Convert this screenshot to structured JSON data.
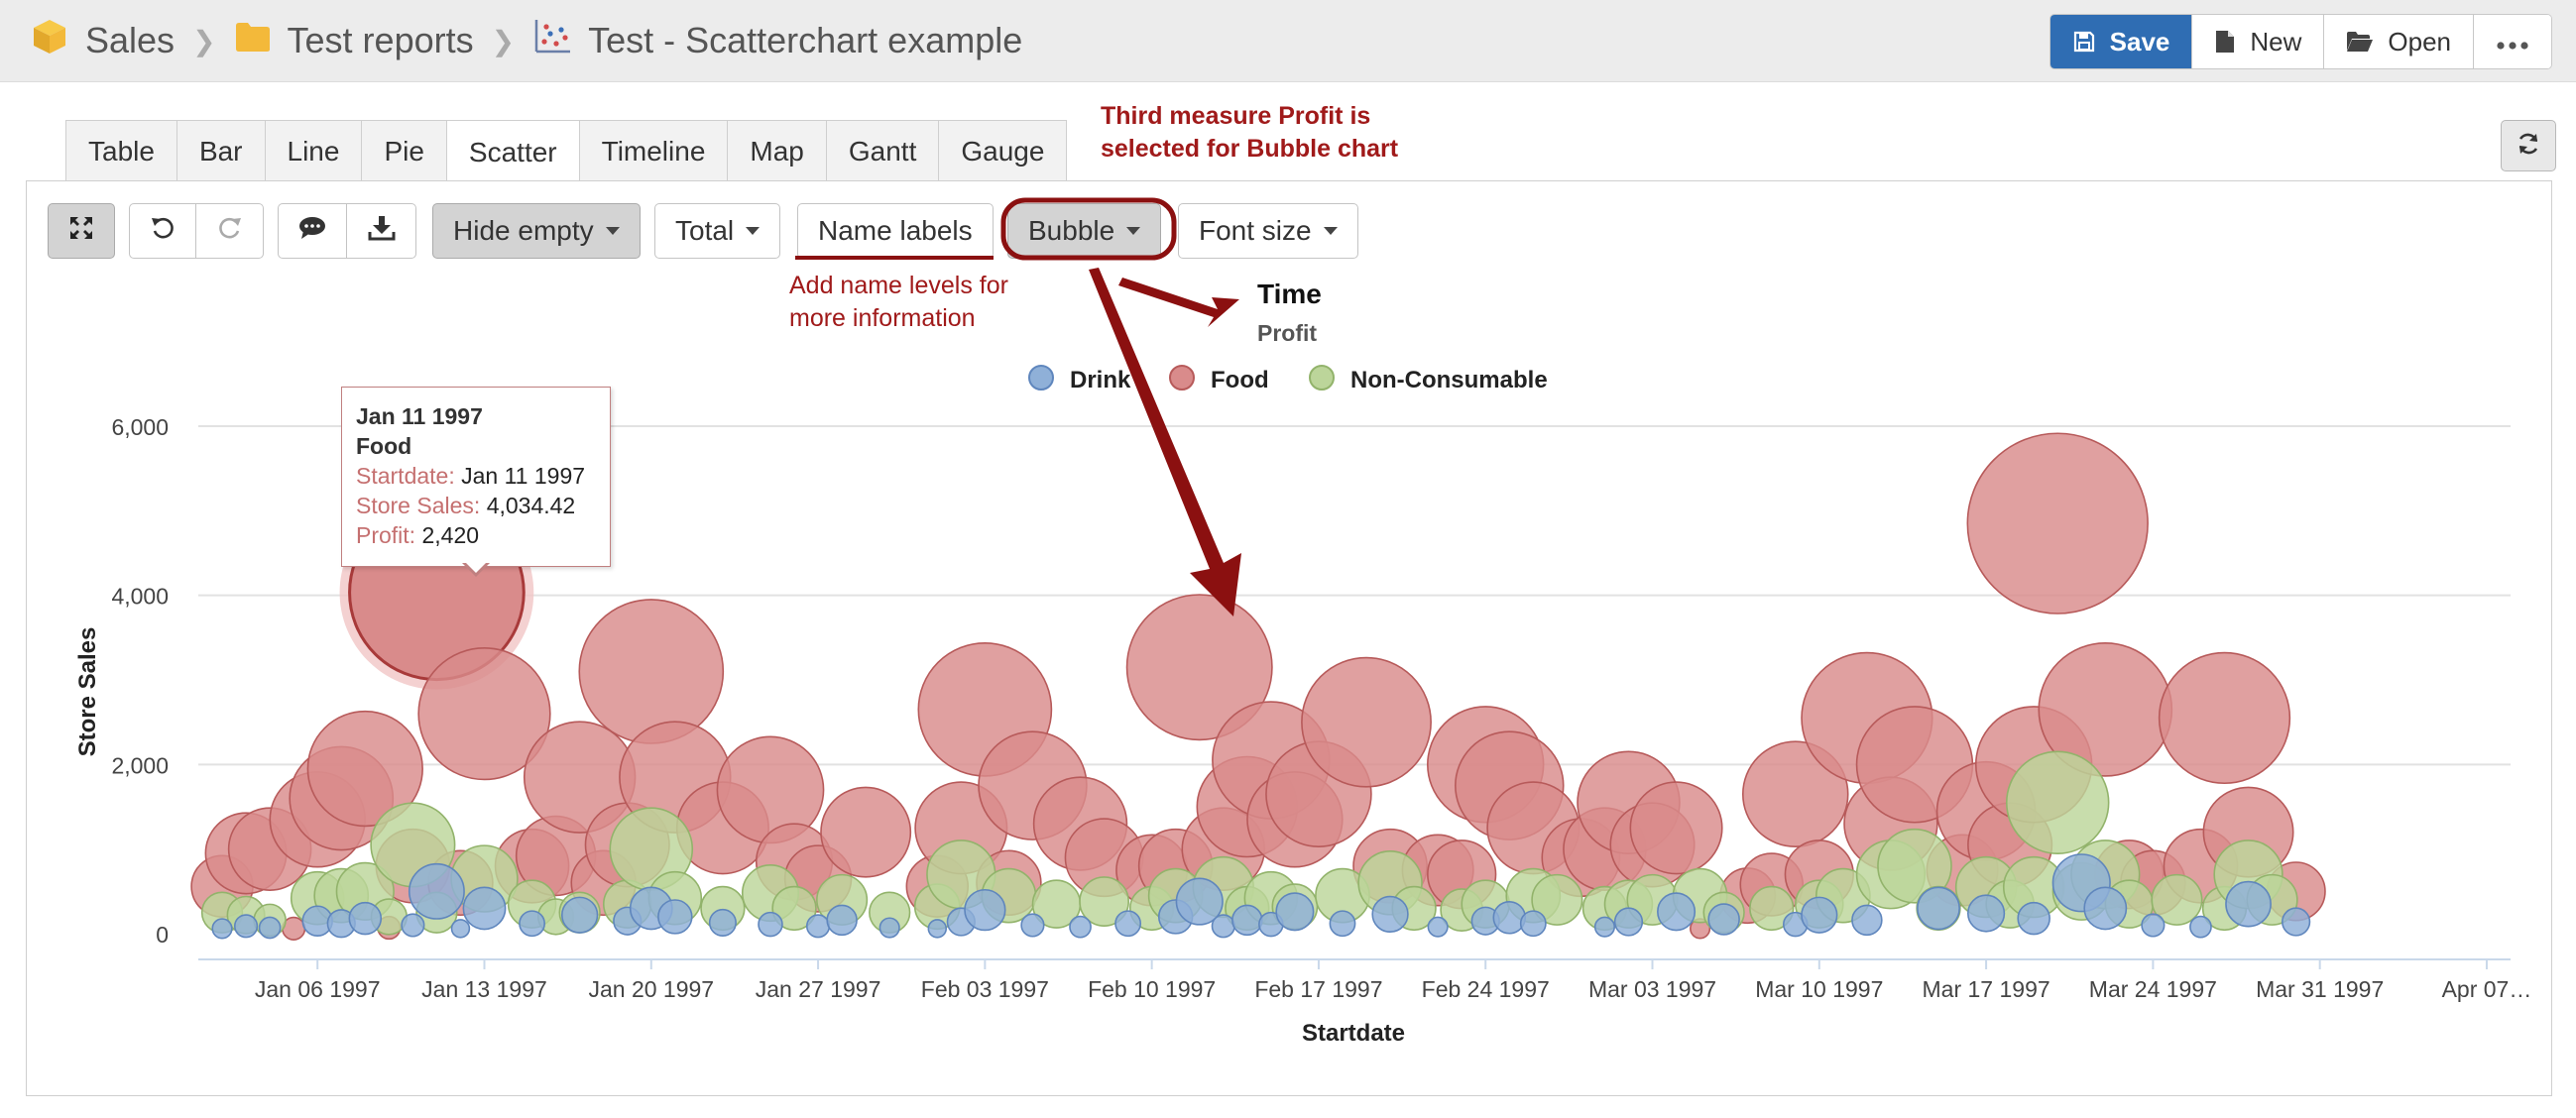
{
  "breadcrumb": {
    "items": [
      "Sales",
      "Test reports",
      "Test - Scatterchart example"
    ]
  },
  "actions": {
    "save": "Save",
    "new": "New",
    "open": "Open"
  },
  "tabs": [
    "Table",
    "Bar",
    "Line",
    "Pie",
    "Scatter",
    "Timeline",
    "Map",
    "Gantt",
    "Gauge"
  ],
  "active_tab": "Scatter",
  "toolbar": {
    "hide_empty": "Hide empty",
    "total": "Total",
    "name_labels": "Name labels",
    "bubble": "Bubble",
    "font_size": "Font size"
  },
  "annotations": {
    "third_measure_1": "Third measure Profit is",
    "third_measure_2": "selected for Bubble chart",
    "name_levels_1": "Add name levels for",
    "name_levels_2": "more information"
  },
  "tooltip": {
    "date": "Jan 11 1997",
    "series": "Food",
    "startdate_key": "Startdate:",
    "startdate_val": "Jan 11 1997",
    "sales_key": "Store Sales:",
    "sales_val": "4,034.42",
    "profit_key": "Profit:",
    "profit_val": "2,420"
  },
  "colors": {
    "drink": "#8fb0d8",
    "food": "#d98b8b",
    "nonconsumable": "#bcd59a",
    "accent": "#2f6db3",
    "annotation": "#a01a1a"
  },
  "chart_data": {
    "type": "scatter",
    "title": "Time",
    "subtitle": "Profit",
    "xlabel": "Startdate",
    "ylabel": "Store Sales",
    "ylim": [
      0,
      6000
    ],
    "yticks": [
      0,
      2000,
      4000,
      6000
    ],
    "ytick_labels": [
      "0",
      "2,000",
      "4,000",
      "6,000"
    ],
    "xlim": [
      "1997-01-01",
      "1997-04-08"
    ],
    "xtick_dates": [
      "1997-01-06",
      "1997-01-13",
      "1997-01-20",
      "1997-01-27",
      "1997-02-03",
      "1997-02-10",
      "1997-02-17",
      "1997-02-24",
      "1997-03-03",
      "1997-03-10",
      "1997-03-17",
      "1997-03-24",
      "1997-03-31",
      "1997-04-07"
    ],
    "xtick_labels": [
      "Jan 06 1997",
      "Jan 13 1997",
      "Jan 20 1997",
      "Jan 27 1997",
      "Feb 03 1997",
      "Feb 10 1997",
      "Feb 17 1997",
      "Feb 24 1997",
      "Mar 03 1997",
      "Mar 10 1997",
      "Mar 17 1997",
      "Mar 24 1997",
      "Mar 31 1997",
      "Apr 07…"
    ],
    "grid": true,
    "legend_position": "top-center",
    "series": [
      {
        "name": "Drink",
        "points": [
          [
            "1997-01-02",
            60,
            30
          ],
          [
            "1997-01-03",
            90,
            40
          ],
          [
            "1997-01-04",
            70,
            35
          ],
          [
            "1997-01-06",
            150,
            70
          ],
          [
            "1997-01-07",
            120,
            60
          ],
          [
            "1997-01-08",
            180,
            80
          ],
          [
            "1997-01-10",
            100,
            40
          ],
          [
            "1997-01-11",
            500,
            240
          ],
          [
            "1997-01-12",
            60,
            25
          ],
          [
            "1997-01-13",
            300,
            140
          ],
          [
            "1997-01-15",
            120,
            50
          ],
          [
            "1997-01-17",
            220,
            100
          ],
          [
            "1997-01-19",
            150,
            60
          ],
          [
            "1997-01-20",
            300,
            140
          ],
          [
            "1997-01-21",
            200,
            90
          ],
          [
            "1997-01-23",
            130,
            55
          ],
          [
            "1997-01-25",
            110,
            45
          ],
          [
            "1997-01-27",
            90,
            40
          ],
          [
            "1997-01-28",
            160,
            70
          ],
          [
            "1997-01-30",
            70,
            30
          ],
          [
            "1997-02-01",
            60,
            25
          ],
          [
            "1997-02-02",
            140,
            60
          ],
          [
            "1997-02-03",
            280,
            130
          ],
          [
            "1997-02-05",
            100,
            40
          ],
          [
            "1997-02-07",
            80,
            35
          ],
          [
            "1997-02-09",
            120,
            50
          ],
          [
            "1997-02-11",
            200,
            90
          ],
          [
            "1997-02-12",
            380,
            170
          ],
          [
            "1997-02-13",
            90,
            40
          ],
          [
            "1997-02-14",
            160,
            70
          ],
          [
            "1997-02-15",
            110,
            45
          ],
          [
            "1997-02-16",
            260,
            110
          ],
          [
            "1997-02-18",
            120,
            50
          ],
          [
            "1997-02-20",
            230,
            100
          ],
          [
            "1997-02-22",
            80,
            30
          ],
          [
            "1997-02-24",
            150,
            60
          ],
          [
            "1997-02-25",
            190,
            80
          ],
          [
            "1997-02-26",
            120,
            50
          ],
          [
            "1997-03-01",
            80,
            30
          ],
          [
            "1997-03-02",
            140,
            60
          ],
          [
            "1997-03-04",
            260,
            110
          ],
          [
            "1997-03-06",
            170,
            75
          ],
          [
            "1997-03-09",
            110,
            45
          ],
          [
            "1997-03-10",
            220,
            100
          ],
          [
            "1997-03-12",
            160,
            70
          ],
          [
            "1997-03-15",
            300,
            140
          ],
          [
            "1997-03-17",
            240,
            105
          ],
          [
            "1997-03-19",
            180,
            80
          ],
          [
            "1997-03-21",
            600,
            260
          ],
          [
            "1997-03-22",
            300,
            140
          ],
          [
            "1997-03-24",
            100,
            40
          ],
          [
            "1997-03-26",
            80,
            35
          ],
          [
            "1997-03-28",
            350,
            160
          ],
          [
            "1997-03-30",
            140,
            60
          ]
        ]
      },
      {
        "name": "Food",
        "points": [
          [
            "1997-01-02",
            560,
            300
          ],
          [
            "1997-01-03",
            950,
            520
          ],
          [
            "1997-01-04",
            1000,
            540
          ],
          [
            "1997-01-05",
            60,
            40
          ],
          [
            "1997-01-06",
            1350,
            720
          ],
          [
            "1997-01-07",
            1600,
            850
          ],
          [
            "1997-01-08",
            1950,
            1050
          ],
          [
            "1997-01-09",
            70,
            40
          ],
          [
            "1997-01-10",
            800,
            430
          ],
          [
            "1997-01-11",
            4034.42,
            2420
          ],
          [
            "1997-01-12",
            600,
            330
          ],
          [
            "1997-01-13",
            2600,
            1380
          ],
          [
            "1997-01-15",
            800,
            430
          ],
          [
            "1997-01-16",
            920,
            500
          ],
          [
            "1997-01-17",
            1850,
            980
          ],
          [
            "1997-01-18",
            600,
            330
          ],
          [
            "1997-01-19",
            1050,
            560
          ],
          [
            "1997-01-20",
            3100,
            1650
          ],
          [
            "1997-01-21",
            1850,
            980
          ],
          [
            "1997-01-23",
            1250,
            670
          ],
          [
            "1997-01-25",
            1700,
            900
          ],
          [
            "1997-01-26",
            850,
            460
          ],
          [
            "1997-01-27",
            650,
            350
          ],
          [
            "1997-01-29",
            1200,
            640
          ],
          [
            "1997-02-01",
            560,
            300
          ],
          [
            "1997-02-02",
            1250,
            670
          ],
          [
            "1997-02-03",
            2650,
            1410
          ],
          [
            "1997-02-04",
            600,
            330
          ],
          [
            "1997-02-05",
            1750,
            930
          ],
          [
            "1997-02-07",
            1300,
            690
          ],
          [
            "1997-02-08",
            900,
            480
          ],
          [
            "1997-02-10",
            750,
            400
          ],
          [
            "1997-02-11",
            800,
            430
          ],
          [
            "1997-02-12",
            3150,
            1680
          ],
          [
            "1997-02-13",
            1000,
            540
          ],
          [
            "1997-02-14",
            1500,
            800
          ],
          [
            "1997-02-15",
            2050,
            1090
          ],
          [
            "1997-02-16",
            1350,
            720
          ],
          [
            "1997-02-17",
            1650,
            880
          ],
          [
            "1997-02-19",
            2500,
            1330
          ],
          [
            "1997-02-20",
            800,
            430
          ],
          [
            "1997-02-22",
            750,
            400
          ],
          [
            "1997-02-23",
            700,
            370
          ],
          [
            "1997-02-24",
            2000,
            1070
          ],
          [
            "1997-02-25",
            1750,
            930
          ],
          [
            "1997-02-26",
            1250,
            670
          ],
          [
            "1997-02-28",
            900,
            480
          ],
          [
            "1997-03-01",
            1000,
            540
          ],
          [
            "1997-03-02",
            1550,
            830
          ],
          [
            "1997-03-03",
            1050,
            560
          ],
          [
            "1997-03-04",
            1250,
            670
          ],
          [
            "1997-03-05",
            60,
            30
          ],
          [
            "1997-03-07",
            450,
            240
          ],
          [
            "1997-03-08",
            580,
            310
          ],
          [
            "1997-03-09",
            1650,
            880
          ],
          [
            "1997-03-10",
            700,
            370
          ],
          [
            "1997-03-12",
            2550,
            1360
          ],
          [
            "1997-03-13",
            1300,
            690
          ],
          [
            "1997-03-14",
            2000,
            1070
          ],
          [
            "1997-03-16",
            750,
            400
          ],
          [
            "1997-03-17",
            1450,
            770
          ],
          [
            "1997-03-18",
            1050,
            560
          ],
          [
            "1997-03-19",
            2000,
            1070
          ],
          [
            "1997-03-20",
            4850,
            2590
          ],
          [
            "1997-03-22",
            2650,
            1410
          ],
          [
            "1997-03-23",
            700,
            370
          ],
          [
            "1997-03-24",
            600,
            330
          ],
          [
            "1997-03-26",
            800,
            430
          ],
          [
            "1997-03-27",
            2550,
            1360
          ],
          [
            "1997-03-28",
            1200,
            640
          ],
          [
            "1997-03-30",
            500,
            270
          ]
        ]
      },
      {
        "name": "Non-Consumable",
        "points": [
          [
            "1997-01-02",
            250,
            130
          ],
          [
            "1997-01-03",
            220,
            110
          ],
          [
            "1997-01-04",
            160,
            80
          ],
          [
            "1997-01-06",
            420,
            220
          ],
          [
            "1997-01-07",
            450,
            230
          ],
          [
            "1997-01-08",
            500,
            260
          ],
          [
            "1997-01-09",
            200,
            100
          ],
          [
            "1997-01-10",
            1050,
            560
          ],
          [
            "1997-01-11",
            250,
            130
          ],
          [
            "1997-01-13",
            650,
            350
          ],
          [
            "1997-01-15",
            350,
            180
          ],
          [
            "1997-01-16",
            200,
            100
          ],
          [
            "1997-01-17",
            250,
            130
          ],
          [
            "1997-01-19",
            350,
            180
          ],
          [
            "1997-01-20",
            1000,
            540
          ],
          [
            "1997-01-21",
            420,
            220
          ],
          [
            "1997-01-23",
            300,
            150
          ],
          [
            "1997-01-25",
            480,
            250
          ],
          [
            "1997-01-26",
            300,
            150
          ],
          [
            "1997-01-28",
            400,
            200
          ],
          [
            "1997-01-30",
            250,
            130
          ],
          [
            "1997-02-01",
            320,
            160
          ],
          [
            "1997-02-02",
            700,
            370
          ],
          [
            "1997-02-04",
            450,
            230
          ],
          [
            "1997-02-06",
            350,
            180
          ],
          [
            "1997-02-08",
            380,
            190
          ],
          [
            "1997-02-10",
            300,
            150
          ],
          [
            "1997-02-11",
            450,
            230
          ],
          [
            "1997-02-13",
            550,
            290
          ],
          [
            "1997-02-14",
            300,
            150
          ],
          [
            "1997-02-15",
            420,
            220
          ],
          [
            "1997-02-16",
            320,
            160
          ],
          [
            "1997-02-18",
            450,
            230
          ],
          [
            "1997-02-20",
            600,
            320
          ],
          [
            "1997-02-21",
            300,
            150
          ],
          [
            "1997-02-23",
            280,
            140
          ],
          [
            "1997-02-24",
            350,
            180
          ],
          [
            "1997-02-26",
            450,
            230
          ],
          [
            "1997-02-27",
            400,
            200
          ],
          [
            "1997-03-01",
            300,
            150
          ],
          [
            "1997-03-02",
            350,
            180
          ],
          [
            "1997-03-03",
            400,
            200
          ],
          [
            "1997-03-05",
            450,
            230
          ],
          [
            "1997-03-06",
            250,
            130
          ],
          [
            "1997-03-08",
            300,
            150
          ],
          [
            "1997-03-10",
            350,
            180
          ],
          [
            "1997-03-11",
            450,
            230
          ],
          [
            "1997-03-13",
            700,
            370
          ],
          [
            "1997-03-14",
            800,
            430
          ],
          [
            "1997-03-15",
            300,
            150
          ],
          [
            "1997-03-17",
            550,
            290
          ],
          [
            "1997-03-18",
            350,
            180
          ],
          [
            "1997-03-19",
            550,
            290
          ],
          [
            "1997-03-20",
            1550,
            830
          ],
          [
            "1997-03-21",
            500,
            260
          ],
          [
            "1997-03-22",
            700,
            370
          ],
          [
            "1997-03-23",
            350,
            180
          ],
          [
            "1997-03-25",
            400,
            200
          ],
          [
            "1997-03-27",
            300,
            150
          ],
          [
            "1997-03-28",
            700,
            370
          ],
          [
            "1997-03-29",
            400,
            200
          ]
        ]
      }
    ]
  }
}
